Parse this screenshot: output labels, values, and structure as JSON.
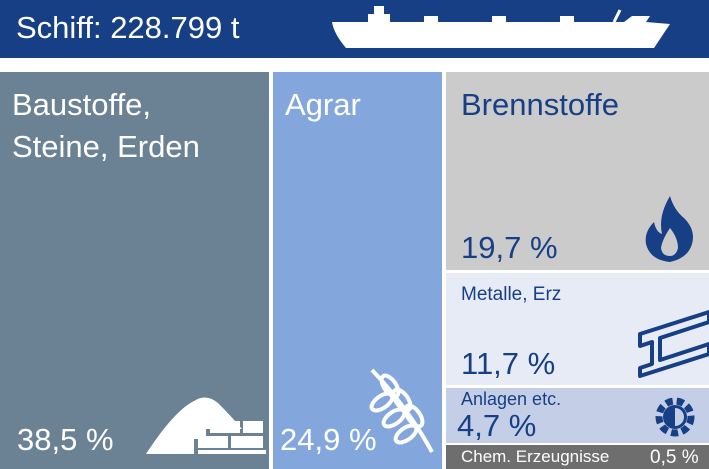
{
  "header": {
    "title": "Schiff: 228.799 t",
    "ship_icon": "ship-icon"
  },
  "colors": {
    "header_bg": "#173f86",
    "baustoffe": "#6b8294",
    "agrar": "#83a7dc",
    "brennstoffe": "#cbcbcb",
    "metalle": "#e6ebf5",
    "anlagen": "#c4cfe7",
    "chem": "#6e6e6e",
    "dark_text": "#173f86",
    "light_text": "#ffffff"
  },
  "chart_data": {
    "type": "treemap",
    "total_label": "Schiff: 228.799 t",
    "categories": [
      "Baustoffe, Steine, Erden",
      "Agrar",
      "Brennstoffe",
      "Metalle, Erz",
      "Anlagen etc.",
      "Chem. Erzeugnisse"
    ],
    "values": [
      38.5,
      24.9,
      19.7,
      11.7,
      4.7,
      0.5
    ],
    "value_labels": [
      "38,5 %",
      "24,9 %",
      "19,7 %",
      "11,7 %",
      "4,7 %",
      "0,5 %"
    ],
    "label_lines": [
      [
        "Baustoffe,",
        "Steine, Erden"
      ],
      [
        "Agrar"
      ],
      [
        "Brennstoffe"
      ],
      [
        "Metalle, Erz"
      ],
      [
        "Anlagen etc."
      ],
      [
        "Chem. Erzeugnisse"
      ]
    ],
    "icons": [
      "sand-pile-bricks-icon",
      "wheat-icon",
      "flame-icon",
      "steel-beam-icon",
      "gear-icon",
      ""
    ]
  }
}
